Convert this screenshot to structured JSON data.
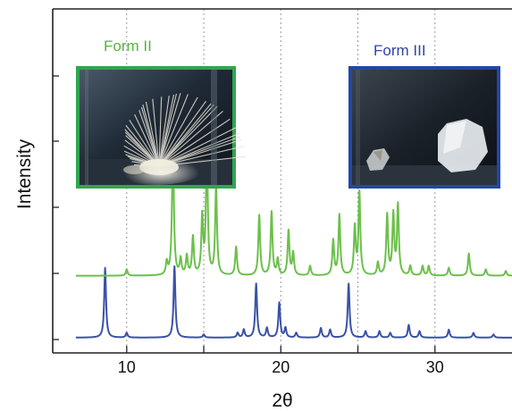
{
  "chart_data": {
    "type": "line",
    "xlabel": "2θ",
    "ylabel": "Intensity",
    "xlim": [
      5.2,
      35
    ],
    "ylim": [
      0,
      100
    ],
    "x_ticks": [
      10,
      20,
      30
    ],
    "x_tick_labels": [
      "10",
      "20",
      "30"
    ],
    "grid": "vertical dotted lines at each 5° of 2θ",
    "y_tick_labels_shown": false,
    "series": [
      {
        "color": "#3a52a8",
        "baseline": 2,
        "peaks": [
          [
            8.6,
            22
          ],
          [
            10.0,
            1.5
          ],
          [
            13.1,
            22.5
          ],
          [
            15.0,
            1
          ],
          [
            17.2,
            1.5
          ],
          [
            17.6,
            2.5
          ],
          [
            18.4,
            17
          ],
          [
            19.1,
            3
          ],
          [
            19.9,
            11
          ],
          [
            20.3,
            3
          ],
          [
            21.0,
            1.5
          ],
          [
            22.6,
            3
          ],
          [
            23.2,
            2.5
          ],
          [
            24.4,
            17
          ],
          [
            25.5,
            2
          ],
          [
            26.4,
            2
          ],
          [
            27.1,
            1.5
          ],
          [
            28.3,
            4
          ],
          [
            29.0,
            2
          ],
          [
            30.9,
            2.5
          ],
          [
            32.5,
            1.5
          ],
          [
            33.8,
            1
          ]
        ]
      },
      {
        "color": "#6cc04a",
        "baseline": 21.5,
        "peaks": [
          [
            10.0,
            2
          ],
          [
            12.6,
            4
          ],
          [
            13.0,
            42
          ],
          [
            13.5,
            5
          ],
          [
            13.9,
            6
          ],
          [
            14.3,
            12
          ],
          [
            14.9,
            18
          ],
          [
            15.2,
            40
          ],
          [
            15.8,
            28
          ],
          [
            17.1,
            9
          ],
          [
            18.6,
            19
          ],
          [
            19.4,
            20
          ],
          [
            19.8,
            5
          ],
          [
            20.5,
            14
          ],
          [
            20.8,
            7
          ],
          [
            21.9,
            3
          ],
          [
            23.4,
            11
          ],
          [
            23.8,
            19
          ],
          [
            24.8,
            15
          ],
          [
            25.1,
            26
          ],
          [
            26.3,
            4
          ],
          [
            26.9,
            19
          ],
          [
            27.3,
            19
          ],
          [
            27.6,
            22
          ],
          [
            28.4,
            3
          ],
          [
            29.2,
            3
          ],
          [
            29.6,
            3
          ],
          [
            30.9,
            2.5
          ],
          [
            32.2,
            7
          ],
          [
            33.3,
            2
          ],
          [
            34.6,
            1.5
          ]
        ]
      }
    ],
    "annotations": [
      {
        "text": "Form II",
        "color": "#57b33f",
        "border": "#2fa64f",
        "position": "top-left",
        "image": "photo of needle-like crystals (Form II)"
      },
      {
        "text": "Form III",
        "color": "#2c47a3",
        "border": "#2346a8",
        "position": "top-right",
        "image": "photo of block-shaped crystals (Form III)"
      }
    ]
  }
}
